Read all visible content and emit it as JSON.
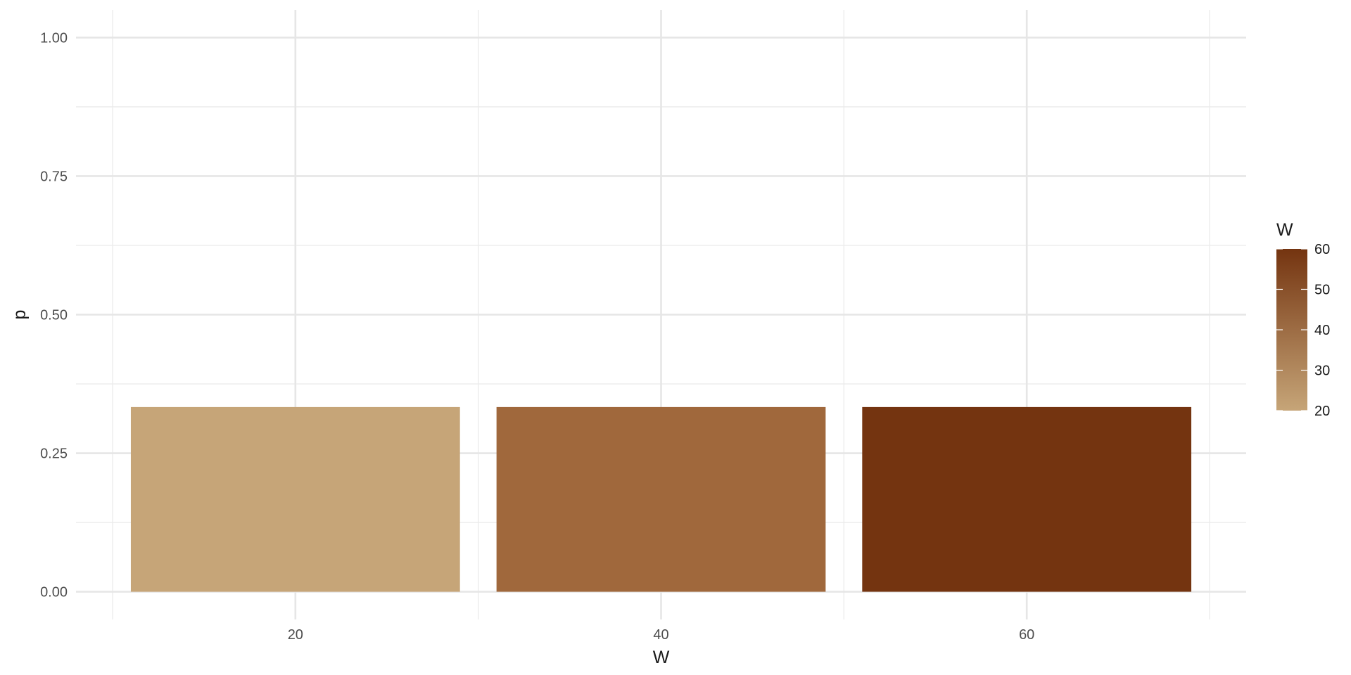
{
  "chart_data": {
    "type": "bar",
    "x": [
      20,
      40,
      60
    ],
    "values": [
      0.3333,
      0.3333,
      0.3333
    ],
    "colors": [
      "#C6A578",
      "#A0683C",
      "#743410"
    ],
    "xlabel": "W",
    "ylabel": "p",
    "xlim": [
      8,
      72
    ],
    "ylim": [
      -0.05,
      1.05
    ],
    "x_ticks": [
      20,
      40,
      60
    ],
    "x_tick_labels": [
      "20",
      "40",
      "60"
    ],
    "x_minor_ticks": [
      10,
      30,
      50,
      70
    ],
    "y_ticks": [
      0,
      0.25,
      0.5,
      0.75,
      1.0
    ],
    "y_tick_labels": [
      "0.00",
      "0.25",
      "0.50",
      "0.75",
      "1.00"
    ],
    "y_minor_ticks": [
      0.125,
      0.375,
      0.625,
      0.875
    ],
    "bar_width": 18,
    "grid": true,
    "legend": {
      "title": "W",
      "type": "colorbar",
      "placement": "right",
      "range": [
        20,
        60
      ],
      "ticks": [
        20,
        30,
        40,
        50,
        60
      ],
      "tick_labels": [
        "20",
        "30",
        "40",
        "50",
        "60"
      ],
      "low_color": "#C6A578",
      "high_color": "#743410"
    }
  }
}
